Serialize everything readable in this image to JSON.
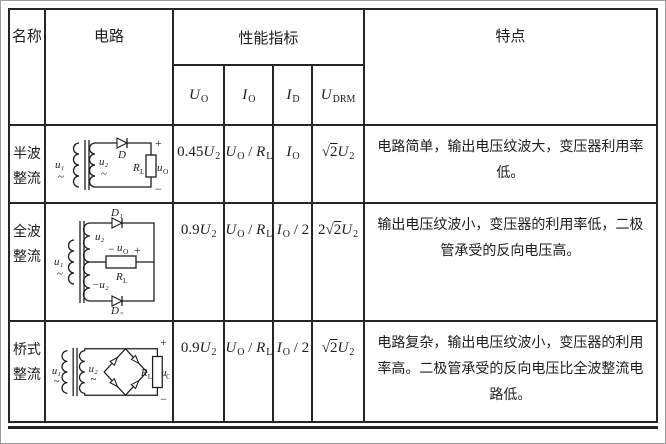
{
  "table": {
    "headers": {
      "name": "名称",
      "circuit": "电路",
      "performance": "性能指标",
      "features": "特点",
      "metrics": [
        [
          {
            "t": "i",
            "v": "U"
          },
          {
            "t": "sub",
            "v": "O"
          }
        ],
        [
          {
            "t": "i",
            "v": "I"
          },
          {
            "t": "sub",
            "v": "O"
          }
        ],
        [
          {
            "t": "i",
            "v": "I"
          },
          {
            "t": "sub",
            "v": "D"
          }
        ],
        [
          {
            "t": "i",
            "v": "U"
          },
          {
            "t": "sub",
            "v": "DRM"
          }
        ]
      ]
    },
    "rows": [
      {
        "name": "半波整流",
        "values": [
          [
            {
              "t": "n",
              "v": "0.45"
            },
            {
              "t": "i",
              "v": "U"
            },
            {
              "t": "sub",
              "v": "2"
            }
          ],
          [
            {
              "t": "i",
              "v": "U"
            },
            {
              "t": "sub",
              "v": "O"
            },
            {
              "t": "n",
              "v": " / "
            },
            {
              "t": "i",
              "v": "R"
            },
            {
              "t": "sub",
              "v": "L"
            }
          ],
          [
            {
              "t": "i",
              "v": "I"
            },
            {
              "t": "sub",
              "v": "O"
            }
          ],
          [
            {
              "t": "sqrt",
              "v": "2"
            },
            {
              "t": "i",
              "v": "U"
            },
            {
              "t": "sub",
              "v": "2"
            }
          ]
        ],
        "feature": "电路简单，输出电压纹波大，变压器利用率低。"
      },
      {
        "name": "全波整流",
        "values": [
          [
            {
              "t": "n",
              "v": "0.9"
            },
            {
              "t": "i",
              "v": "U"
            },
            {
              "t": "sub",
              "v": "2"
            }
          ],
          [
            {
              "t": "i",
              "v": "U"
            },
            {
              "t": "sub",
              "v": "O"
            },
            {
              "t": "n",
              "v": " / "
            },
            {
              "t": "i",
              "v": "R"
            },
            {
              "t": "sub",
              "v": "L"
            }
          ],
          [
            {
              "t": "i",
              "v": "I"
            },
            {
              "t": "sub",
              "v": "O"
            },
            {
              "t": "n",
              "v": " / 2"
            }
          ],
          [
            {
              "t": "n",
              "v": "2"
            },
            {
              "t": "sqrt",
              "v": "2"
            },
            {
              "t": "i",
              "v": "U"
            },
            {
              "t": "sub",
              "v": "2"
            }
          ]
        ],
        "feature": "输出电压纹波小，变压器的利用率低，二极管承受的反向电压高。"
      },
      {
        "name": "桥式整流",
        "values": [
          [
            {
              "t": "n",
              "v": "0.9"
            },
            {
              "t": "i",
              "v": "U"
            },
            {
              "t": "sub",
              "v": "2"
            }
          ],
          [
            {
              "t": "i",
              "v": "U"
            },
            {
              "t": "sub",
              "v": "O"
            },
            {
              "t": "n",
              "v": " / "
            },
            {
              "t": "i",
              "v": "R"
            },
            {
              "t": "sub",
              "v": "L"
            }
          ],
          [
            {
              "t": "i",
              "v": "I"
            },
            {
              "t": "sub",
              "v": "O"
            },
            {
              "t": "n",
              "v": " / 2"
            }
          ],
          [
            {
              "t": "sqrt",
              "v": "2"
            },
            {
              "t": "i",
              "v": "U"
            },
            {
              "t": "sub",
              "v": "2"
            }
          ]
        ],
        "feature": "电路复杂，输出电压纹波小，变压器的利用率高。二极管承受的反向电压比全波整流电路低。"
      }
    ],
    "circuit_labels": {
      "half": {
        "u1": "u₁",
        "tilde1": "~",
        "u2": "u₂",
        "tilde2": "~",
        "d": "D",
        "r": "R",
        "rsub": "L",
        "uo": "u",
        "uosub": "O",
        "plus": "+",
        "minus": "−"
      },
      "full": {
        "u1": "u₁",
        "tilde": "~",
        "u2": "u₂",
        "negu2": "−u₂",
        "d1": "D₁",
        "d2": "D₂",
        "r": "R",
        "rsub": "L",
        "uo": "u",
        "uosub": "O",
        "plus": "+",
        "minus": "−"
      },
      "bridge": {
        "u1": "u₁",
        "tilde1": "~",
        "u2": "u₂",
        "tilde2": "~",
        "r": "R",
        "rsub": "L",
        "uo": "u",
        "uosub": "O",
        "plus": "+",
        "minus": "−"
      }
    }
  }
}
